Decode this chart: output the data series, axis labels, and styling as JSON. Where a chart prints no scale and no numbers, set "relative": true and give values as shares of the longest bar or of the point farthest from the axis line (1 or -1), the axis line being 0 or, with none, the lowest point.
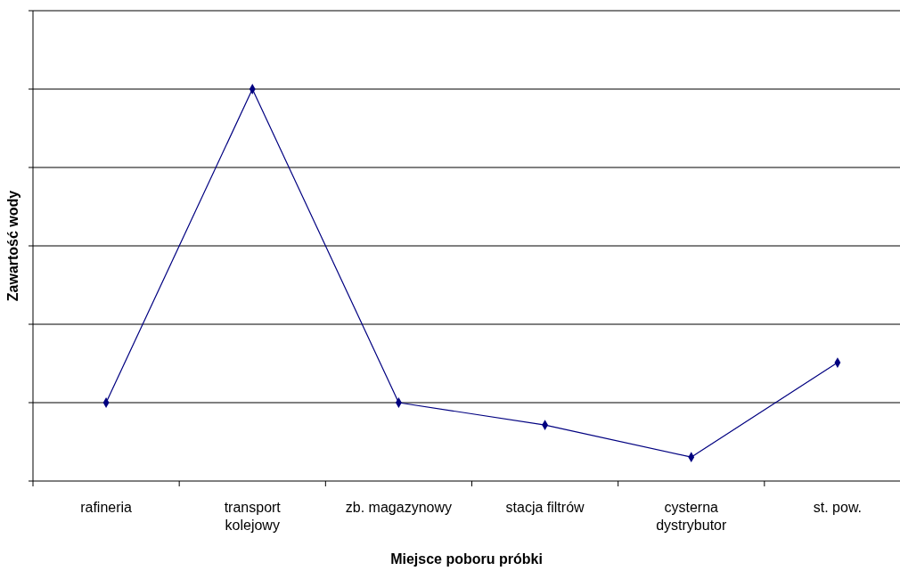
{
  "chart_data": {
    "type": "line",
    "xlabel": "Miejsce poboru próbki",
    "ylabel": "Zawartość wody",
    "relative": true,
    "grid": "y",
    "marker": "diamond",
    "line_style": "solid",
    "categories": [
      "rafineria",
      "transport kolejowy",
      "zb. magazynowy",
      "stacja filtrów",
      "cysterna dystrybutor",
      "st. pow."
    ],
    "series": [
      {
        "color": "#000080",
        "values": [
          0.2,
          1,
          0.2,
          0.143,
          0.061,
          0.302
        ]
      }
    ]
  }
}
